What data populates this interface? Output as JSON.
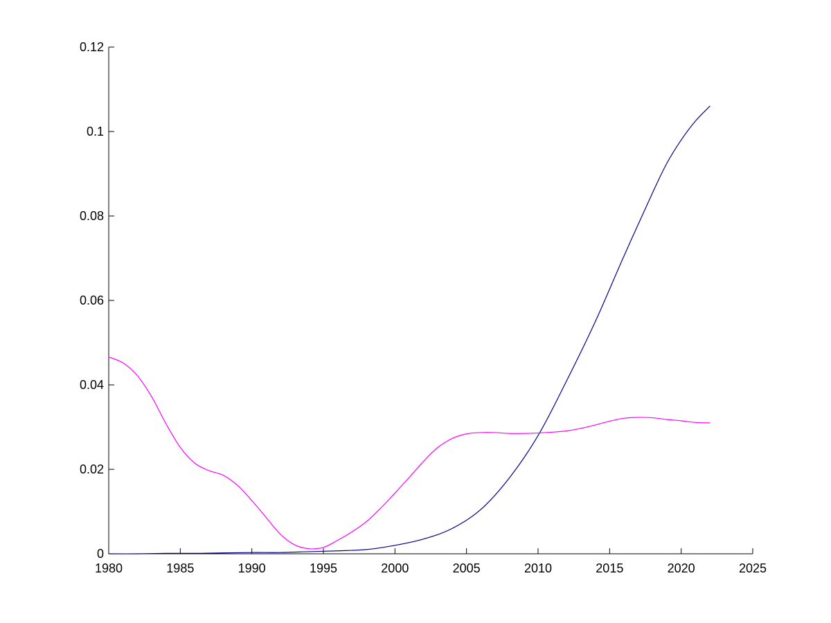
{
  "chart_data": {
    "type": "line",
    "title": "",
    "xlabel": "",
    "ylabel": "",
    "xlim": [
      1980,
      2025
    ],
    "ylim": [
      0,
      0.12
    ],
    "x_ticks": [
      1980,
      1985,
      1990,
      1995,
      2000,
      2005,
      2010,
      2015,
      2020,
      2025
    ],
    "y_ticks": [
      0,
      0.02,
      0.04,
      0.06,
      0.08,
      0.1,
      0.12
    ],
    "x_tick_labels": [
      "1980",
      "1985",
      "1990",
      "1995",
      "2000",
      "2005",
      "2010",
      "2015",
      "2020",
      "2025"
    ],
    "y_tick_labels": [
      "0",
      "0.02",
      "0.04",
      "0.06",
      "0.08",
      "0.1",
      "0.12"
    ],
    "grid": false,
    "legend": "none",
    "series": [
      {
        "color": "#00008b",
        "x": [
          1980,
          1982,
          1984,
          1986,
          1988,
          1990,
          1992,
          1994,
          1996,
          1998,
          2000,
          2002,
          2004,
          2006,
          2008,
          2010,
          2012,
          2014,
          2016,
          2018,
          2019,
          2020,
          2021,
          2022
        ],
        "y": [
          0,
          0,
          0.0001,
          0.0001,
          0.0002,
          0.0003,
          0.0003,
          0.0005,
          0.0007,
          0.001,
          0.002,
          0.0035,
          0.006,
          0.0105,
          0.018,
          0.028,
          0.041,
          0.055,
          0.0705,
          0.0855,
          0.0925,
          0.098,
          0.1025,
          0.106
        ]
      },
      {
        "color": "#ff00ff",
        "x": [
          1980,
          1981,
          1982,
          1983,
          1984,
          1985,
          1986,
          1987,
          1988,
          1989,
          1990,
          1991,
          1992,
          1993,
          1994,
          1995,
          1996,
          1997,
          1998,
          1999,
          2000,
          2001,
          2002,
          2003,
          2004,
          2005,
          2006,
          2007,
          2008,
          2009,
          2010,
          2011,
          2012,
          2013,
          2014,
          2015,
          2016,
          2017,
          2018,
          2019,
          2020,
          2021,
          2022
        ],
        "y": [
          0.0466,
          0.0452,
          0.0422,
          0.0372,
          0.0308,
          0.0252,
          0.0215,
          0.0197,
          0.0186,
          0.0162,
          0.0126,
          0.0086,
          0.0046,
          0.0021,
          0.0012,
          0.0015,
          0.0032,
          0.0052,
          0.0076,
          0.0108,
          0.0144,
          0.0181,
          0.0219,
          0.0252,
          0.0273,
          0.0284,
          0.0287,
          0.0287,
          0.0285,
          0.0285,
          0.0286,
          0.0288,
          0.0291,
          0.0297,
          0.0305,
          0.0314,
          0.0321,
          0.0323,
          0.0322,
          0.0318,
          0.0315,
          0.0311,
          0.031
        ]
      }
    ]
  }
}
